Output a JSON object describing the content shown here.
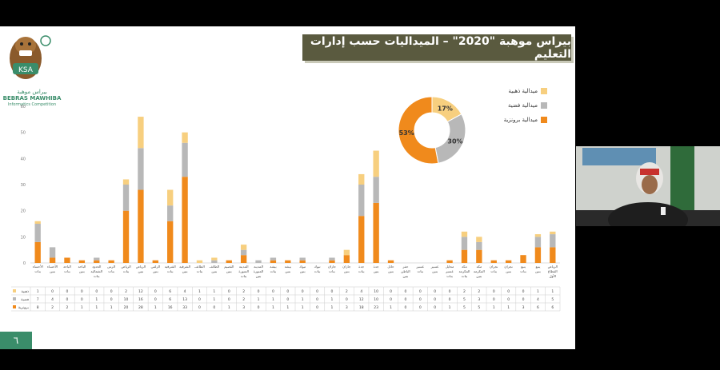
{
  "title": "بيراس موهبة \"2020\" – الميداليات حسب إدارات التعليم",
  "slide_number": "٦",
  "logo": {
    "text_ar": "بيراس موهبة",
    "text_en": "BEBRAS MAWHIBA",
    "sub": "Informatics Competition",
    "badge": "KSA"
  },
  "colors": {
    "gold": "#f7cf7f",
    "silver": "#b8b8b8",
    "bronze": "#f08a1c",
    "title_bg": "#5a5a3f",
    "accent": "#3a8d6a"
  },
  "chart_data": {
    "type": "bar",
    "stacked": true,
    "ylim": [
      0,
      60
    ],
    "yticks": [
      0,
      10,
      20,
      30,
      40,
      50,
      60
    ],
    "categories": [
      "الأحساء بنات",
      "الأحساء بنين",
      "الباحة بنات",
      "الباحة بنين",
      "الحدود الشمالية بنات",
      "الرس بنات",
      "الرياض بنات",
      "الرياض بنين",
      "الزلفي بنين",
      "الشرقية بنات",
      "الشرقية بنين",
      "الطائف بنات",
      "الطائف بنين",
      "القصيم بنين",
      "المدينة المنورة بنات",
      "المدينة المنورة بنين",
      "بيشة بنات",
      "بيشة بنين",
      "تبوك بنين",
      "تبوك بنات",
      "جازان بنات",
      "جازان بنين",
      "جدة بنات",
      "جدة بنين",
      "حائل بنين",
      "حفر الباطن بنين",
      "عسير بنات",
      "عسير بنين",
      "محايل عسير بنات",
      "مكة المكرمة بنات",
      "مكة المكرمة بنين",
      "نجران بنات",
      "نجران بنين",
      "ينبع بنات",
      "ينبع بنين",
      "الرياض القطاع الأول"
    ],
    "series": [
      {
        "name": "ميدالية ذهبية",
        "table_label": "ذهبية",
        "color": "#f7cf7f",
        "values": [
          1,
          0,
          0,
          0,
          0,
          0,
          2,
          12,
          0,
          6,
          4,
          1,
          1,
          0,
          2,
          0,
          0,
          0,
          0,
          0,
          0,
          2,
          4,
          10,
          0,
          0,
          0,
          0,
          0,
          2,
          2,
          0,
          0,
          0,
          1,
          1
        ]
      },
      {
        "name": "ميدالية فضية",
        "table_label": "فضية",
        "color": "#b8b8b8",
        "values": [
          7,
          4,
          0,
          0,
          1,
          0,
          10,
          16,
          0,
          6,
          13,
          0,
          1,
          0,
          2,
          1,
          1,
          0,
          1,
          0,
          1,
          0,
          12,
          10,
          0,
          0,
          0,
          0,
          0,
          5,
          3,
          0,
          0,
          0,
          4,
          5
        ]
      },
      {
        "name": "ميدالية برونزية",
        "table_label": "برونزية",
        "color": "#f08a1c",
        "values": [
          8,
          2,
          2,
          1,
          1,
          1,
          20,
          28,
          1,
          16,
          33,
          0,
          0,
          1,
          3,
          0,
          1,
          1,
          1,
          0,
          1,
          3,
          18,
          23,
          1,
          0,
          0,
          0,
          1,
          5,
          5,
          1,
          1,
          3,
          6,
          6
        ]
      }
    ],
    "pie": {
      "values": [
        17,
        30,
        53
      ],
      "labels": [
        "17%",
        "30%",
        "53%"
      ],
      "names": [
        "ميدالية ذهبية",
        "ميدالية فضية",
        "ميدالية برونزية"
      ]
    },
    "grid": false,
    "legend_position": "top-right"
  }
}
